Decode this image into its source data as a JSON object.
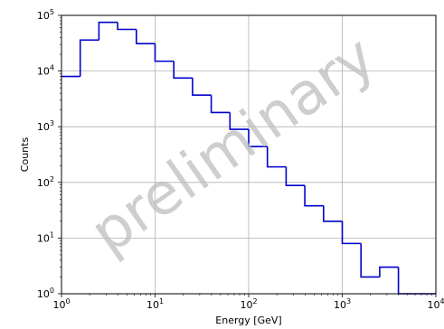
{
  "chart_data": {
    "type": "histogram-step",
    "xlabel": "Energy [GeV]",
    "ylabel": "Counts",
    "xscale": "log",
    "yscale": "log",
    "xlim": [
      1,
      10000
    ],
    "ylim": [
      1,
      100000
    ],
    "grid": true,
    "line_color": "#0000cc",
    "watermark": "preliminary",
    "x_ticks": [
      {
        "value": 1,
        "base": "10",
        "exp": "0"
      },
      {
        "value": 10,
        "base": "10",
        "exp": "1"
      },
      {
        "value": 100,
        "base": "10",
        "exp": "2"
      },
      {
        "value": 1000,
        "base": "10",
        "exp": "3"
      },
      {
        "value": 10000,
        "base": "10",
        "exp": "4"
      }
    ],
    "y_ticks": [
      {
        "value": 1,
        "base": "10",
        "exp": "0"
      },
      {
        "value": 10,
        "base": "10",
        "exp": "1"
      },
      {
        "value": 100,
        "base": "10",
        "exp": "2"
      },
      {
        "value": 1000,
        "base": "10",
        "exp": "3"
      },
      {
        "value": 10000,
        "base": "10",
        "exp": "4"
      },
      {
        "value": 100000,
        "base": "10",
        "exp": "5"
      }
    ],
    "bin_edges": [
      1,
      1.585,
      2.512,
      3.981,
      6.31,
      10,
      15.85,
      25.12,
      39.81,
      63.1,
      100,
      158.5,
      251.2,
      398.1,
      631,
      1000,
      1585,
      2512,
      3981,
      6310,
      10000
    ],
    "counts": [
      8000,
      36000,
      75000,
      56000,
      31000,
      15000,
      7500,
      3700,
      1800,
      900,
      440,
      190,
      88,
      38,
      20,
      8,
      2,
      3,
      1,
      1
    ]
  }
}
